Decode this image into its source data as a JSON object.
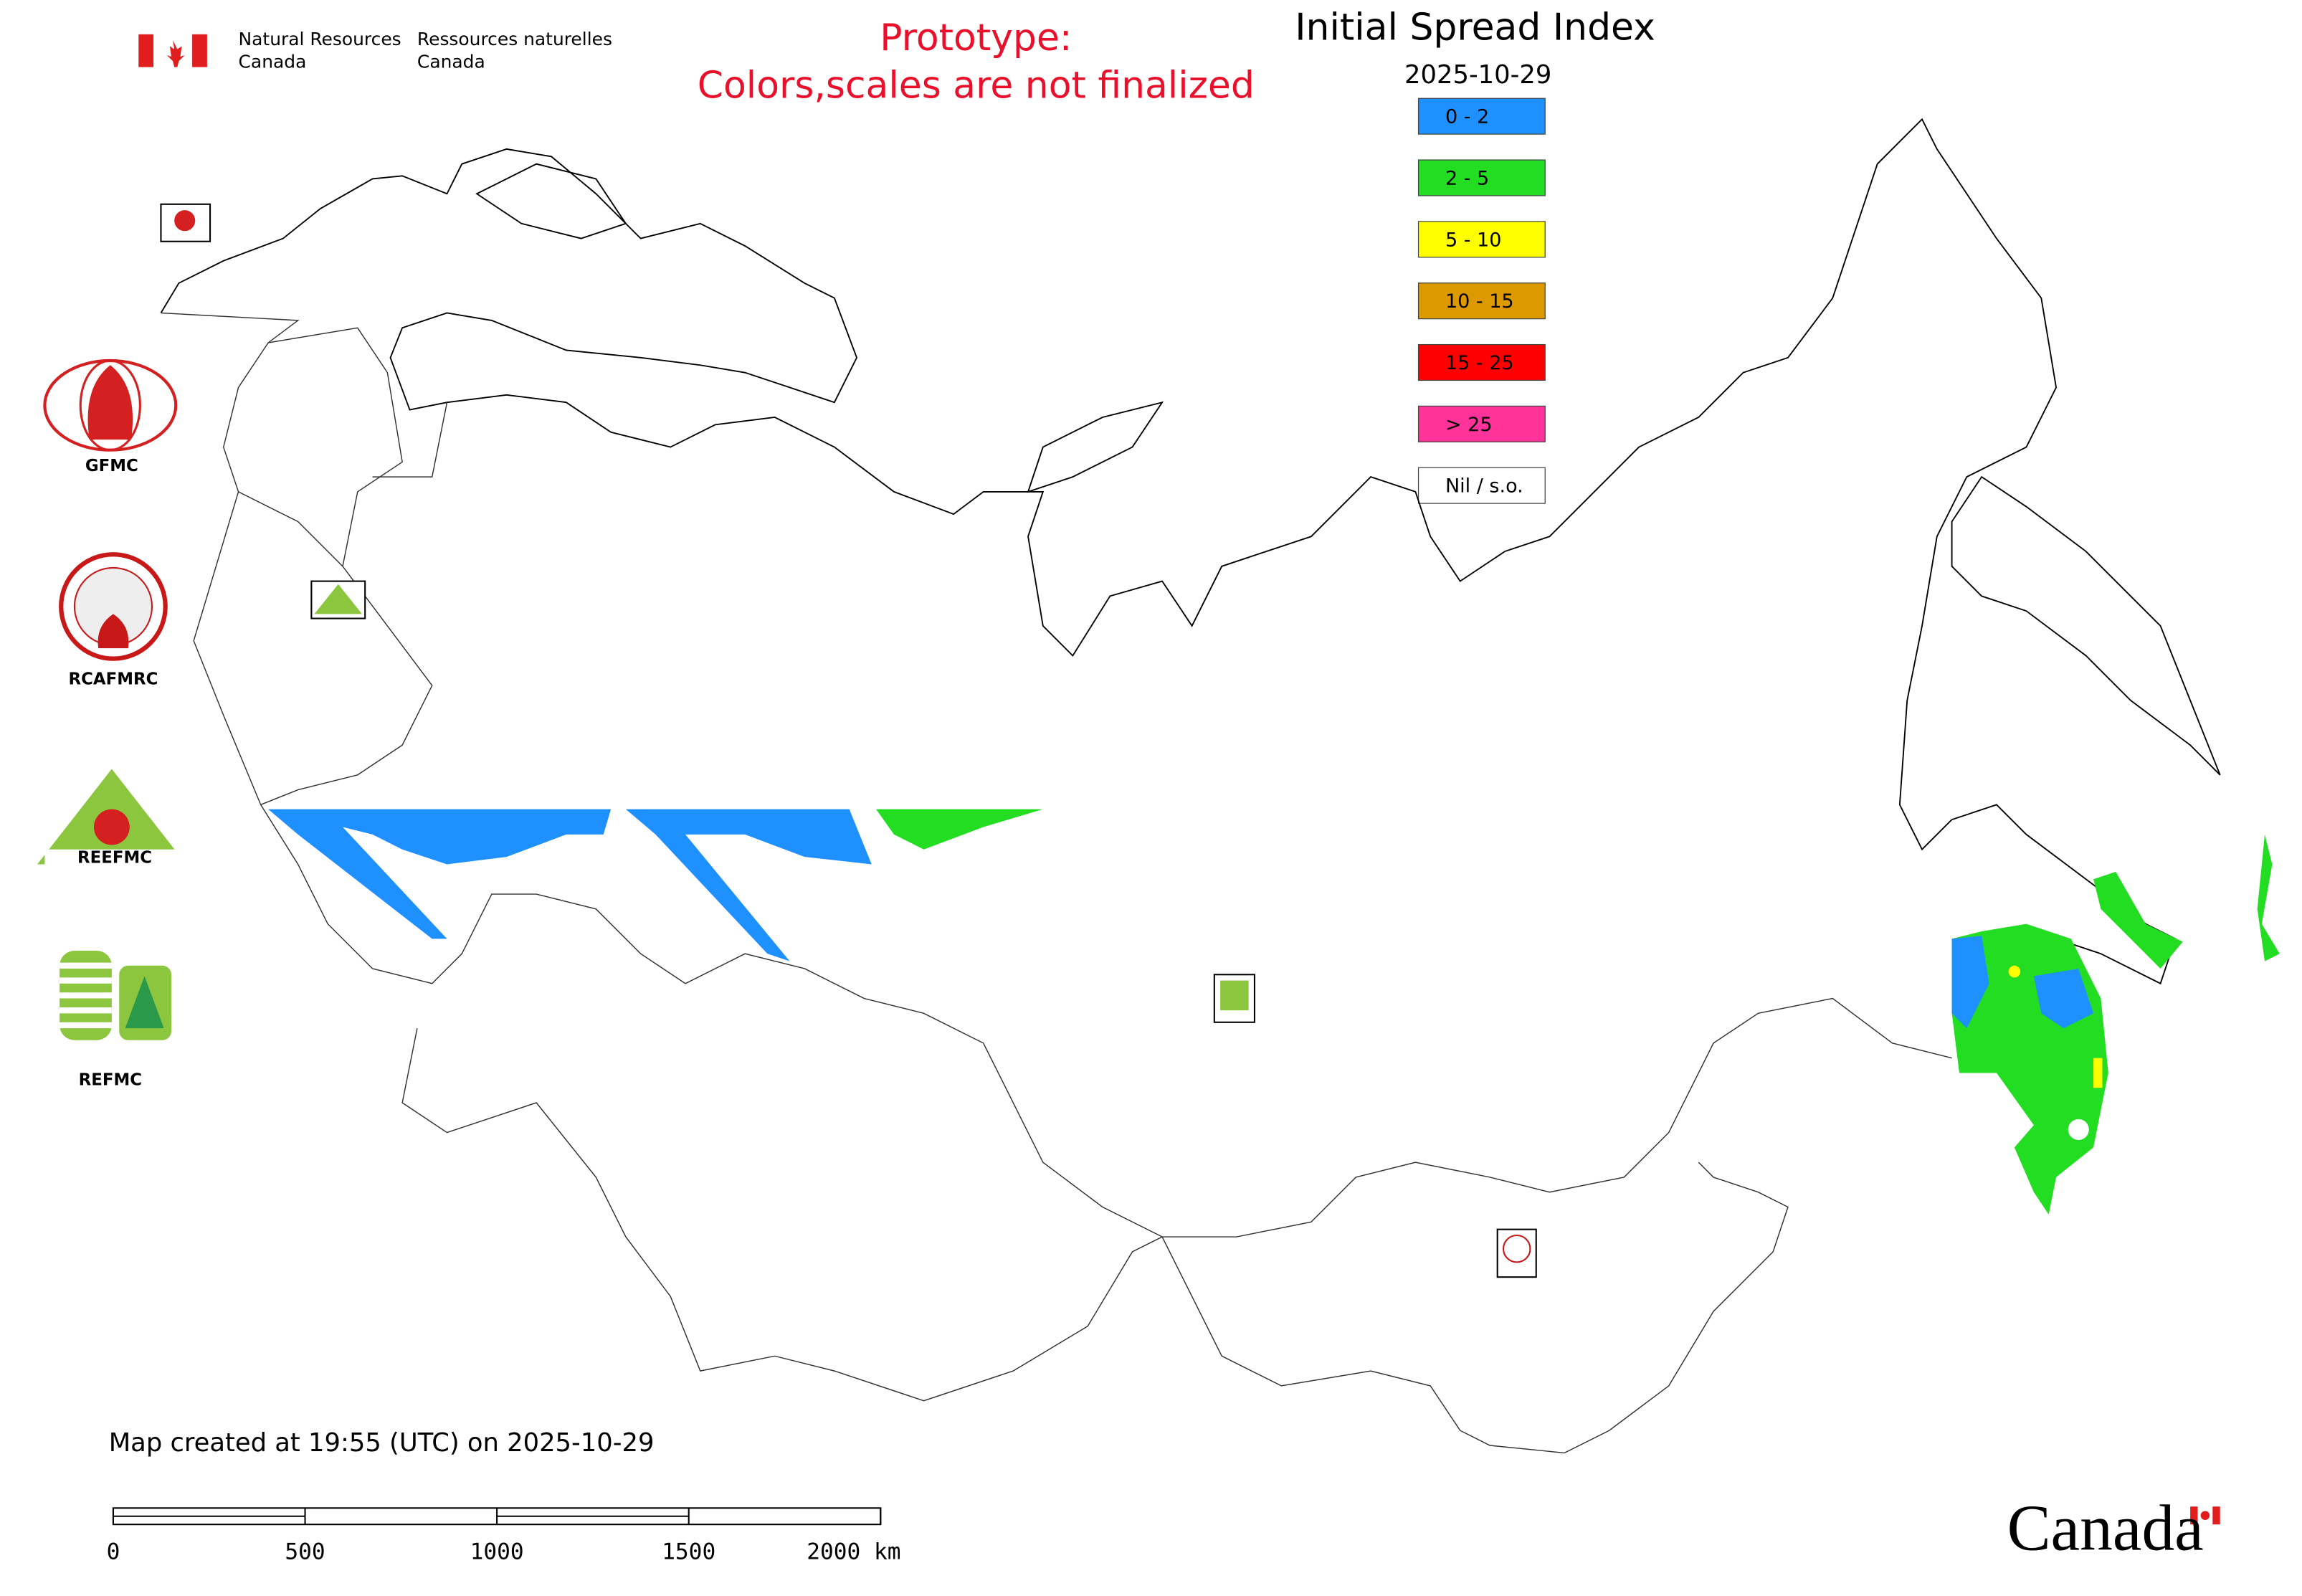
{
  "header": {
    "agency_en": [
      "Natural Resources",
      "Canada"
    ],
    "agency_fr": [
      "Ressources naturelles",
      "Canada"
    ],
    "prototype": [
      "Prototype:",
      "Colors,scales are not finalized"
    ],
    "title": "Initial Spread Index",
    "date": "2025-10-29"
  },
  "legend": [
    {
      "label": "0 - 2",
      "color": "#1e90ff"
    },
    {
      "label": "2 - 5",
      "color": "#22dd22"
    },
    {
      "label": "5 - 10",
      "color": "#ffff00"
    },
    {
      "label": "10 - 15",
      "color": "#dd9900"
    },
    {
      "label": "15 - 25",
      "color": "#ff0000"
    },
    {
      "label": "> 25",
      "color": "#ff3399"
    },
    {
      "label": "Nil / s.o.",
      "color": "#ffffff"
    }
  ],
  "logos": [
    "GFMC",
    "RCAFMRC",
    "REFMC"
  ],
  "footer": {
    "created": "Map created at 19:55 (UTC) on 2025-10-29",
    "wordmark": "Canada"
  },
  "scale_bar": {
    "range": [
      0,
      2000
    ],
    "ticks": [
      0,
      500,
      1000,
      1500,
      {
        "value": 2000,
        "label": "2000 km"
      }
    ]
  }
}
